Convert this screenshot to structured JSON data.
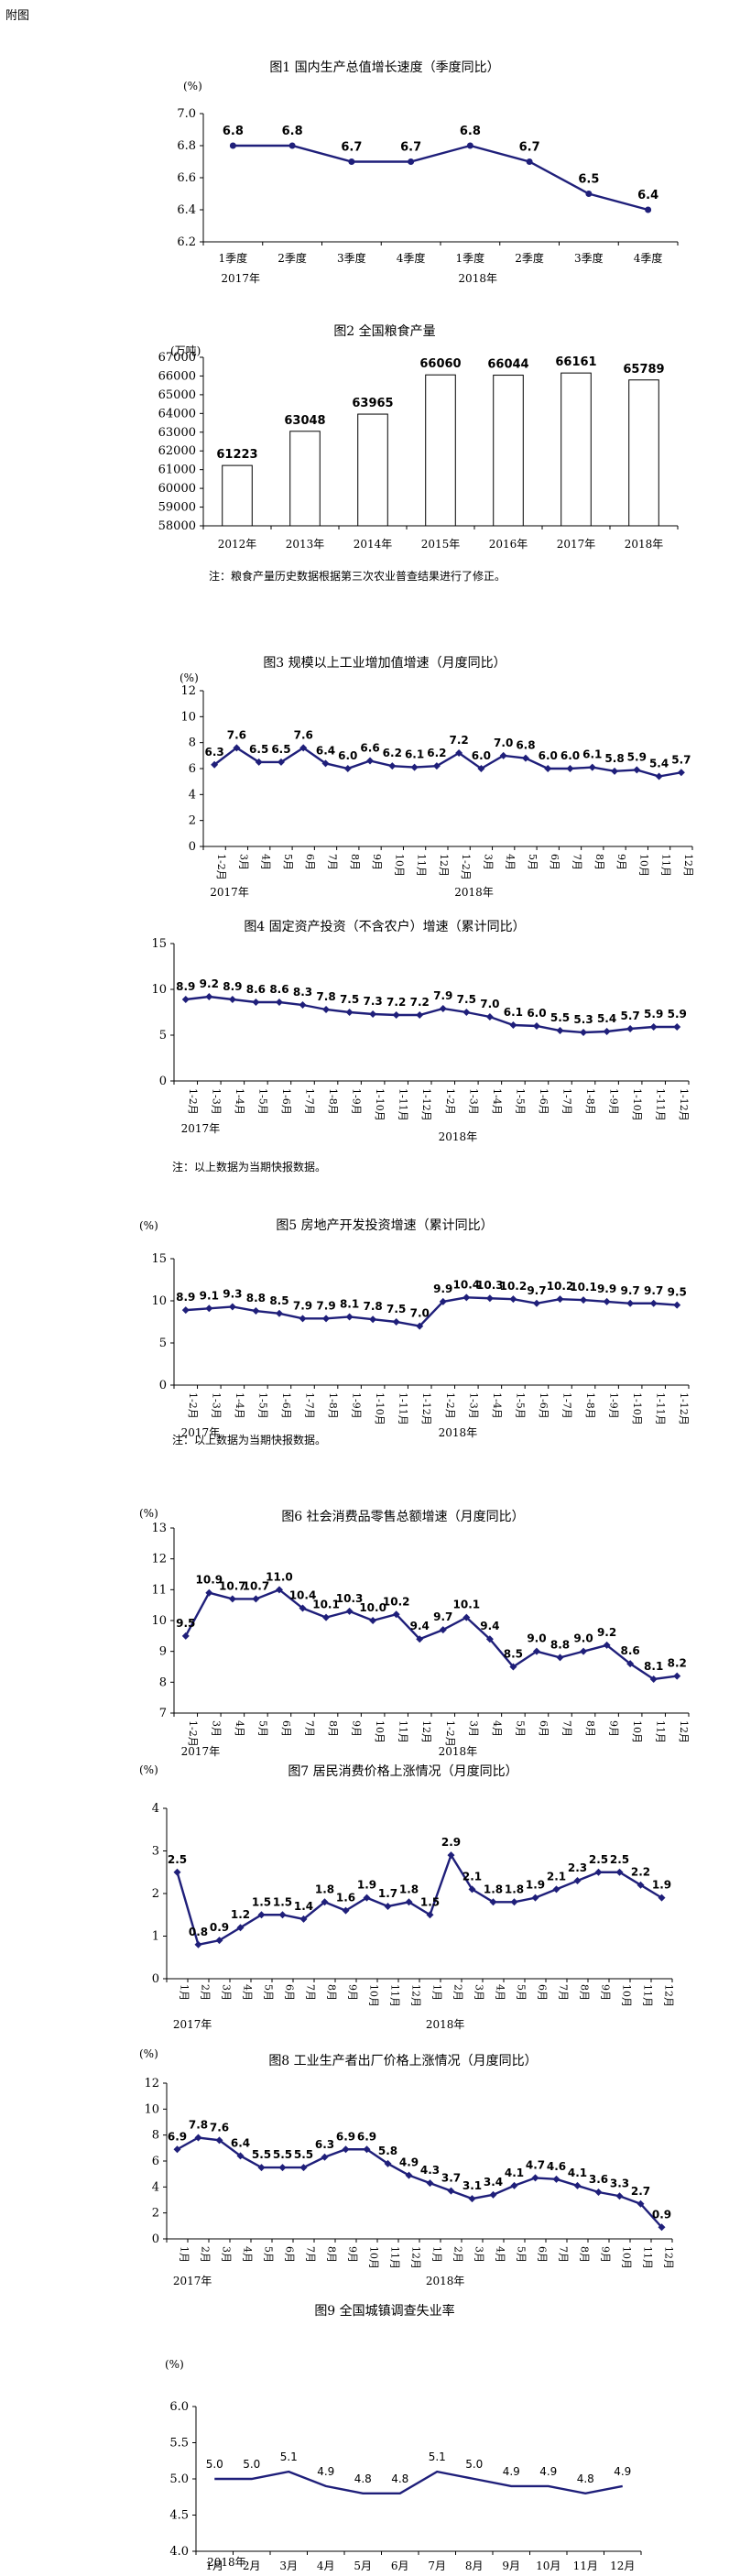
{
  "page_title": "附图",
  "charts": [
    {
      "type": "line",
      "title": "图1  国内生产总值增长速度（季度同比）",
      "unit": "(%)",
      "categories": [
        "1季度",
        "2季度",
        "3季度",
        "4季度",
        "1季度",
        "2季度",
        "3季度",
        "4季度"
      ],
      "year_labels": [
        {
          "label": "2017年",
          "at": 0
        },
        {
          "label": "2018年",
          "at": 4
        }
      ],
      "values": [
        6.8,
        6.8,
        6.7,
        6.7,
        6.8,
        6.7,
        6.5,
        6.4
      ],
      "data_labels": [
        "6.8",
        "6.8",
        "6.7",
        "6.7",
        "6.8",
        "6.7",
        "6.5",
        "6.4"
      ],
      "yticks": [
        6.2,
        6.4,
        6.6,
        6.8,
        7.0
      ],
      "ytick_labels": [
        "6.2",
        "6.4",
        "6.6",
        "6.8",
        "7.0"
      ],
      "ylim": [
        6.2,
        7.0
      ],
      "color": "#1f1f7a",
      "marker": "circle"
    },
    {
      "type": "bar",
      "title": "图2  全国粮食产量",
      "unit": "(万吨)",
      "categories": [
        "2012年",
        "2013年",
        "2014年",
        "2015年",
        "2016年",
        "2017年",
        "2018年"
      ],
      "values": [
        61223,
        63048,
        63965,
        66060,
        66044,
        66161,
        65789
      ],
      "data_labels": [
        "61223",
        "63048",
        "63965",
        "66060",
        "66044",
        "66161",
        "65789"
      ],
      "yticks": [
        58000,
        59000,
        60000,
        61000,
        62000,
        63000,
        64000,
        65000,
        66000,
        67000
      ],
      "ytick_labels": [
        "58000",
        "59000",
        "60000",
        "61000",
        "62000",
        "63000",
        "64000",
        "65000",
        "66000",
        "67000"
      ],
      "ylim": [
        58000,
        67000
      ],
      "note": "注：粮食产量历史数据根据第三次农业普查结果进行了修正。"
    },
    {
      "type": "line",
      "title": "图3  规模以上工业增加值增速（月度同比）",
      "unit": "(%)",
      "categories": [
        "1-2月",
        "3月",
        "4月",
        "5月",
        "6月",
        "7月",
        "8月",
        "9月",
        "10月",
        "11月",
        "12月",
        "1-2月",
        "3月",
        "4月",
        "5月",
        "6月",
        "7月",
        "8月",
        "9月",
        "10月",
        "11月",
        "12月"
      ],
      "year_labels": [
        {
          "label": "2017年",
          "at": 0
        },
        {
          "label": "2018年",
          "at": 11
        }
      ],
      "values": [
        6.3,
        7.6,
        6.5,
        6.5,
        7.6,
        6.4,
        6.0,
        6.6,
        6.2,
        6.1,
        6.2,
        7.2,
        6.0,
        7.0,
        6.8,
        6.0,
        6.0,
        6.1,
        5.8,
        5.9,
        5.4,
        5.7
      ],
      "data_labels": [
        "6.3",
        "7.6",
        "6.5",
        "6.5",
        "7.6",
        "6.4",
        "6.0",
        "6.6",
        "6.2",
        "6.1",
        "6.2",
        "7.2",
        "6.0",
        "7.0",
        "6.8",
        "6.0",
        "6.0",
        "6.1",
        "5.8",
        "5.9",
        "5.4",
        "5.7"
      ],
      "yticks": [
        0,
        2,
        4,
        6,
        8,
        10,
        12
      ],
      "ytick_labels": [
        "0",
        "2",
        "4",
        "6",
        "8",
        "10",
        "12"
      ],
      "ylim": [
        0,
        12
      ],
      "color": "#1f1f7a",
      "marker": "diamond"
    },
    {
      "type": "line",
      "title": "图4  固定资产投资（不含农户）增速（累计同比）",
      "unit": "",
      "categories": [
        "1-2月",
        "1-3月",
        "1-4月",
        "1-5月",
        "1-6月",
        "1-7月",
        "1-8月",
        "1-9月",
        "1-10月",
        "1-11月",
        "1-12月",
        "1-2月",
        "1-3月",
        "1-4月",
        "1-5月",
        "1-6月",
        "1-7月",
        "1-8月",
        "1-9月",
        "1-10月",
        "1-11月",
        "1-12月"
      ],
      "year_labels": [
        {
          "label": "2017年",
          "at": 0
        },
        {
          "label": "2018年",
          "at": 11
        }
      ],
      "values": [
        8.9,
        9.2,
        8.9,
        8.6,
        8.6,
        8.3,
        7.8,
        7.5,
        7.3,
        7.2,
        7.2,
        7.9,
        7.5,
        7.0,
        6.1,
        6.0,
        5.5,
        5.3,
        5.4,
        5.7,
        5.9,
        5.9
      ],
      "data_labels": [
        "8.9",
        "9.2",
        "8.9",
        "8.6",
        "8.6",
        "8.3",
        "7.8",
        "7.5",
        "7.3",
        "7.2",
        "7.2",
        "7.9",
        "7.5",
        "7.0",
        "6.1",
        "6.0",
        "5.5",
        "5.3",
        "5.4",
        "5.7",
        "5.9",
        "5.9"
      ],
      "yticks": [
        0,
        5,
        10,
        15
      ],
      "ytick_labels": [
        "0",
        "5",
        "10",
        "15"
      ],
      "ylim": [
        0,
        15
      ],
      "color": "#1f1f7a",
      "marker": "diamond",
      "note": "注：以上数据为当期快报数据。"
    },
    {
      "type": "line",
      "title": "图5  房地产开发投资增速（累计同比）",
      "unit": "(%)",
      "categories": [
        "1-2月",
        "1-3月",
        "1-4月",
        "1-5月",
        "1-6月",
        "1-7月",
        "1-8月",
        "1-9月",
        "1-10月",
        "1-11月",
        "1-12月",
        "1-2月",
        "1-3月",
        "1-4月",
        "1-5月",
        "1-6月",
        "1-7月",
        "1-8月",
        "1-9月",
        "1-10月",
        "1-11月",
        "1-12月"
      ],
      "year_labels": [
        {
          "label": "2017年",
          "at": 0
        },
        {
          "label": "2018年",
          "at": 11
        }
      ],
      "values": [
        8.9,
        9.1,
        9.3,
        8.8,
        8.5,
        7.9,
        7.9,
        8.1,
        7.8,
        7.5,
        7.0,
        9.9,
        10.4,
        10.3,
        10.2,
        9.7,
        10.2,
        10.1,
        9.9,
        9.7,
        9.7,
        9.5
      ],
      "data_labels": [
        "8.9",
        "9.1",
        "9.3",
        "8.8",
        "8.5",
        "7.9",
        "7.9",
        "8.1",
        "7.8",
        "7.5",
        "7.0",
        "9.9",
        "10.4",
        "10.3",
        "10.2",
        "9.7",
        "10.2",
        "10.1",
        "9.9",
        "9.7",
        "9.7",
        "9.5"
      ],
      "yticks": [
        0,
        5,
        10,
        15
      ],
      "ytick_labels": [
        "0",
        "5",
        "10",
        "15"
      ],
      "ylim": [
        0,
        15
      ],
      "color": "#1f1f7a",
      "marker": "diamond",
      "note": "注：以上数据为当期快报数据。"
    },
    {
      "type": "line",
      "title": "图6  社会消费品零售总额增速（月度同比）",
      "unit": "(%)",
      "categories": [
        "1-2月",
        "3月",
        "4月",
        "5月",
        "6月",
        "7月",
        "8月",
        "9月",
        "10月",
        "11月",
        "12月",
        "1-2月",
        "3月",
        "4月",
        "5月",
        "6月",
        "7月",
        "8月",
        "9月",
        "10月",
        "11月",
        "12月"
      ],
      "year_labels": [
        {
          "label": "2017年",
          "at": 0
        },
        {
          "label": "2018年",
          "at": 11
        }
      ],
      "values": [
        9.5,
        10.9,
        10.7,
        10.7,
        11.0,
        10.4,
        10.1,
        10.3,
        10.0,
        10.2,
        9.4,
        9.7,
        10.1,
        9.4,
        8.5,
        9.0,
        8.8,
        9.0,
        9.2,
        8.6,
        8.1,
        8.2
      ],
      "data_labels": [
        "9.5",
        "10.9",
        "10.7",
        "10.7",
        "11.0",
        "10.4",
        "10.1",
        "10.3",
        "10.0",
        "10.2",
        "9.4",
        "9.7",
        "10.1",
        "9.4",
        "8.5",
        "9.0",
        "8.8",
        "9.0",
        "9.2",
        "8.6",
        "8.1",
        "8.2"
      ],
      "yticks": [
        7,
        8,
        9,
        10,
        11,
        12,
        13
      ],
      "ytick_labels": [
        "7",
        "8",
        "9",
        "10",
        "11",
        "12",
        "13"
      ],
      "ylim": [
        7,
        13
      ],
      "color": "#1f1f7a",
      "marker": "diamond"
    },
    {
      "type": "line",
      "title": "图7  居民消费价格上涨情况（月度同比）",
      "unit": "(%)",
      "categories": [
        "1月",
        "2月",
        "3月",
        "4月",
        "5月",
        "6月",
        "7月",
        "8月",
        "9月",
        "10月",
        "11月",
        "12月",
        "1月",
        "2月",
        "3月",
        "4月",
        "5月",
        "6月",
        "7月",
        "8月",
        "9月",
        "10月",
        "11月",
        "12月"
      ],
      "year_labels": [
        {
          "label": "2017年",
          "at": 0
        },
        {
          "label": "2018年",
          "at": 12
        }
      ],
      "values": [
        2.5,
        0.8,
        0.9,
        1.2,
        1.5,
        1.5,
        1.4,
        1.8,
        1.6,
        1.9,
        1.7,
        1.8,
        1.5,
        2.9,
        2.1,
        1.8,
        1.8,
        1.9,
        2.1,
        2.3,
        2.5,
        2.5,
        2.2,
        1.9
      ],
      "data_labels": [
        "2.5",
        "0.8",
        "0.9",
        "1.2",
        "1.5",
        "1.5",
        "1.4",
        "1.8",
        "1.6",
        "1.9",
        "1.7",
        "1.8",
        "1.5",
        "2.9",
        "2.1",
        "1.8",
        "1.8",
        "1.9",
        "2.1",
        "2.3",
        "2.5",
        "2.5",
        "2.2",
        "1.9"
      ],
      "yticks": [
        0,
        1,
        2,
        3,
        4
      ],
      "ytick_labels": [
        "0",
        "1",
        "2",
        "3",
        "4"
      ],
      "ylim": [
        0,
        4
      ],
      "color": "#1f1f7a",
      "marker": "diamond"
    },
    {
      "type": "line",
      "title": "图8  工业生产者出厂价格上涨情况（月度同比）",
      "unit": "(%)",
      "categories": [
        "1月",
        "2月",
        "3月",
        "4月",
        "5月",
        "6月",
        "7月",
        "8月",
        "9月",
        "10月",
        "11月",
        "12月",
        "1月",
        "2月",
        "3月",
        "4月",
        "5月",
        "6月",
        "7月",
        "8月",
        "9月",
        "10月",
        "11月",
        "12月"
      ],
      "year_labels": [
        {
          "label": "2017年",
          "at": 0
        },
        {
          "label": "2018年",
          "at": 12
        }
      ],
      "values": [
        6.9,
        7.8,
        7.6,
        6.4,
        5.5,
        5.5,
        5.5,
        6.3,
        6.9,
        6.9,
        5.8,
        4.9,
        4.3,
        3.7,
        3.1,
        3.4,
        4.1,
        4.7,
        4.6,
        4.1,
        3.6,
        3.3,
        2.7,
        0.9
      ],
      "data_labels": [
        "6.9",
        "7.8",
        "7.6",
        "6.4",
        "5.5",
        "5.5",
        "5.5",
        "6.3",
        "6.9",
        "6.9",
        "5.8",
        "4.9",
        "4.3",
        "3.7",
        "3.1",
        "3.4",
        "4.1",
        "4.7",
        "4.6",
        "4.1",
        "3.6",
        "3.3",
        "2.7",
        "0.9"
      ],
      "yticks": [
        0,
        2,
        4,
        6,
        8,
        10,
        12
      ],
      "ytick_labels": [
        "0",
        "2",
        "4",
        "6",
        "8",
        "10",
        "12"
      ],
      "ylim": [
        0,
        12
      ],
      "color": "#1f1f7a",
      "marker": "diamond"
    },
    {
      "type": "line",
      "title": "图9  全国城镇调查失业率",
      "unit": "(%)",
      "categories": [
        "1月",
        "2月",
        "3月",
        "4月",
        "5月",
        "6月",
        "7月",
        "8月",
        "9月",
        "10月",
        "11月",
        "12月"
      ],
      "year_labels": [
        {
          "label": "2018年",
          "at": 0
        }
      ],
      "values": [
        5.0,
        5.0,
        5.1,
        4.9,
        4.8,
        4.8,
        5.1,
        5.0,
        4.9,
        4.9,
        4.8,
        4.9
      ],
      "data_labels": [
        "5.0",
        "5.0",
        "5.1",
        "4.9",
        "4.8",
        "4.8",
        "5.1",
        "5.0",
        "4.9",
        "4.9",
        "4.8",
        "4.9"
      ],
      "yticks": [
        4.0,
        4.5,
        5.0,
        5.5,
        6.0
      ],
      "ytick_labels": [
        "4.0",
        "4.5",
        "5.0",
        "5.5",
        "6.0"
      ],
      "ylim": [
        4.0,
        6.0
      ],
      "color": "#1f1f7a",
      "marker": "none"
    }
  ]
}
